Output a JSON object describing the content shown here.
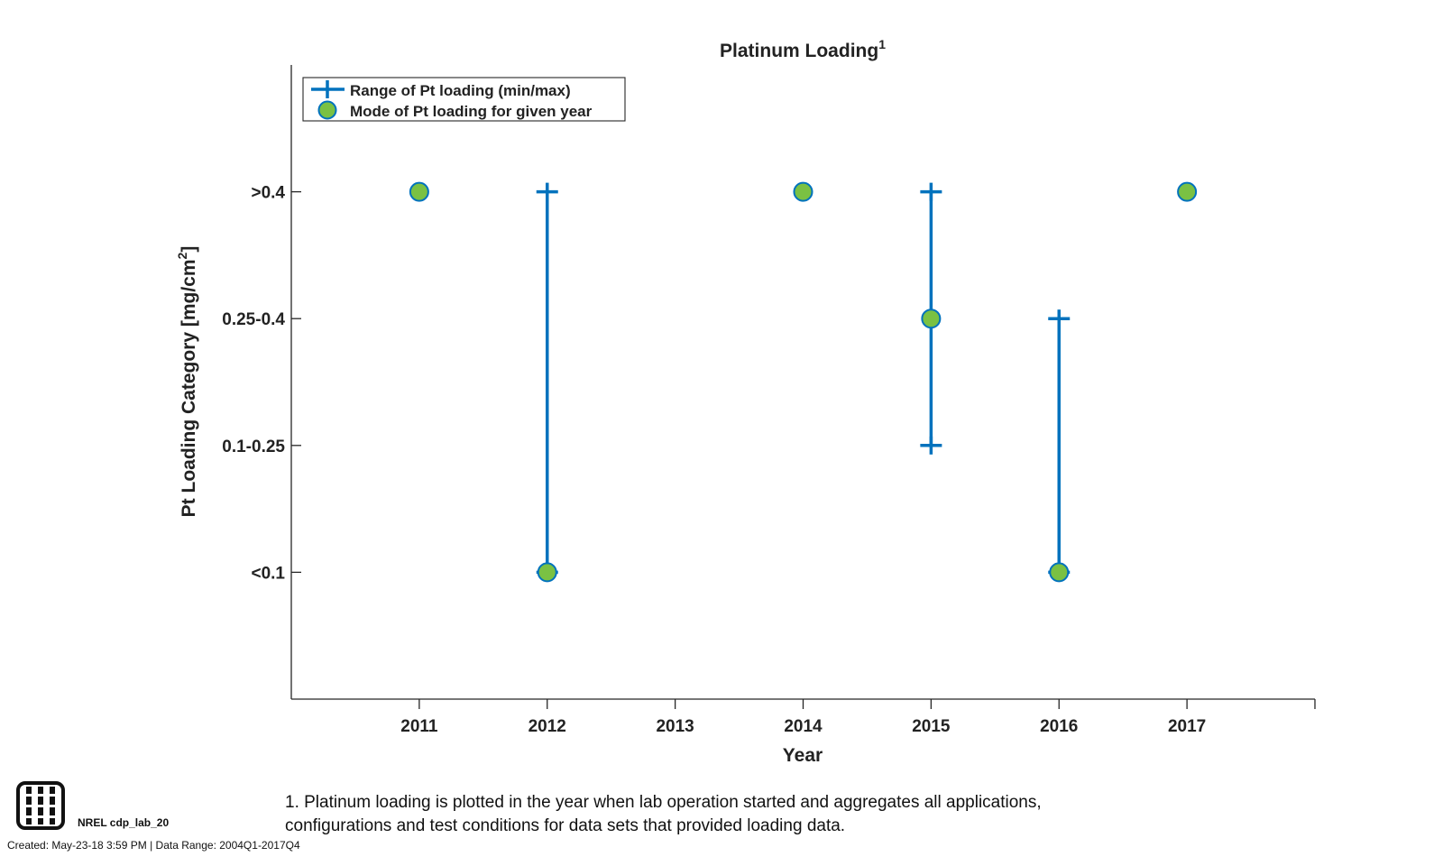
{
  "chart_data": {
    "type": "scatter",
    "title": "Platinum Loading",
    "title_superscript": "1",
    "xlabel": "Year",
    "ylabel": "Pt Loading Category [mg/cm",
    "ylabel_superscript": "2",
    "ylabel_suffix": "]",
    "x_ticks": [
      "2011",
      "2012",
      "2013",
      "2014",
      "2015",
      "2016",
      "2017"
    ],
    "x_range": [
      2010,
      2018
    ],
    "y_categories": [
      "<0.1",
      "0.1-0.25",
      "0.25-0.4",
      ">0.4"
    ],
    "y_range": [
      0,
      5
    ],
    "series": [
      {
        "name": "Range of Pt loading (min/max)",
        "marker": "plus",
        "color": "#0072BD",
        "ranges": [
          {
            "x": 2012,
            "min": "<0.1",
            "max": ">0.4"
          },
          {
            "x": 2015,
            "min": "0.1-0.25",
            "max": ">0.4"
          },
          {
            "x": 2016,
            "min": "<0.1",
            "max": "0.25-0.4"
          }
        ]
      },
      {
        "name": "Mode of Pt loading for given year",
        "marker": "circle",
        "color": "#7AC143",
        "edge_color": "#0072BD",
        "points": [
          {
            "x": 2011,
            "y": ">0.4"
          },
          {
            "x": 2012,
            "y": "<0.1"
          },
          {
            "x": 2014,
            "y": ">0.4"
          },
          {
            "x": 2015,
            "y": "0.25-0.4"
          },
          {
            "x": 2016,
            "y": "<0.1"
          },
          {
            "x": 2017,
            "y": ">0.4"
          }
        ]
      }
    ],
    "legend_position": "top-left",
    "grid": false
  },
  "footnote": {
    "line1": "1. Platinum loading is plotted in the year when lab operation started and aggregates all applications,",
    "line2": "configurations and test conditions for data sets that provided loading data."
  },
  "lab_id": "NREL cdp_lab_20",
  "created": "Created: May-23-18  3:59 PM | Data Range: 2004Q1-2017Q4"
}
